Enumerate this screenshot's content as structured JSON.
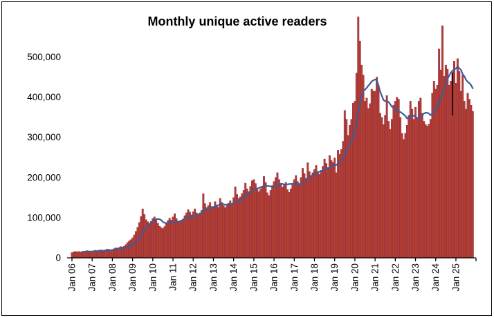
{
  "chart_data": {
    "type": "bar",
    "title": "Monthly unique active readers",
    "x_start_month": "2006-01",
    "x_end_month": "2025-11",
    "grid": false,
    "legend": "none",
    "ylim": [
      0,
      620000
    ],
    "y_tick_values": [
      0,
      100000,
      200000,
      300000,
      400000,
      500000
    ],
    "y_tick_labels": [
      "0",
      "100,000",
      "200,000",
      "300,000",
      "400,000",
      "500,000"
    ],
    "x_tick_labels": [
      "Jan 06",
      "Jan 07",
      "Jan 08",
      "Jan 09",
      "Jan 10",
      "Jan 11",
      "Jan 12",
      "Jan 13",
      "Jan 14",
      "Jan 15",
      "Jan 16",
      "Jan 17",
      "Jan 18",
      "Jan 19",
      "Jan 20",
      "Jan 21",
      "Jan 22",
      "Jan 23",
      "Jan 24",
      "Jan 25"
    ],
    "series": [
      {
        "name": "Monthly unique active readers",
        "type": "bar",
        "color": "#b5402e",
        "edge_color": "#8e2b50",
        "values": [
          13000,
          15000,
          16000,
          15000,
          16000,
          15000,
          14000,
          16000,
          17000,
          18000,
          17000,
          15000,
          16000,
          18000,
          19000,
          18000,
          19000,
          20000,
          19000,
          18000,
          20000,
          22000,
          21000,
          19000,
          21000,
          23000,
          25000,
          24000,
          26000,
          28000,
          27000,
          29000,
          33000,
          38000,
          42000,
          45000,
          50000,
          57000,
          66000,
          76000,
          88000,
          103000,
          122000,
          108000,
          95000,
          90000,
          86000,
          91000,
          98000,
          102000,
          94000,
          86000,
          79000,
          75000,
          73000,
          78000,
          86000,
          93000,
          99000,
          94000,
          102000,
          110000,
          98000,
          92000,
          90000,
          94000,
          97000,
          105000,
          112000,
          120000,
          114000,
          107000,
          115000,
          122000,
          112000,
          108000,
          112000,
          118000,
          160000,
          135000,
          125000,
          130000,
          138000,
          128000,
          128000,
          140000,
          132000,
          126000,
          148000,
          138000,
          130000,
          125000,
          130000,
          136000,
          142000,
          135000,
          150000,
          177000,
          158000,
          148000,
          152000,
          160000,
          168000,
          186000,
          172000,
          165000,
          178000,
          192000,
          195000,
          185000,
          170000,
          165000,
          172000,
          178000,
          203000,
          188000,
          162000,
          155000,
          168000,
          180000,
          190000,
          200000,
          212000,
          195000,
          182000,
          176000,
          180000,
          188000,
          170000,
          163000,
          172000,
          185000,
          195000,
          205000,
          190000,
          185000,
          200000,
          223000,
          210000,
          198000,
          237000,
          215000,
          205000,
          212000,
          220000,
          230000,
          215000,
          208000,
          218000,
          228000,
          246000,
          235000,
          225000,
          255000,
          243000,
          238000,
          249000,
          212000,
          268000,
          258000,
          270000,
          290000,
          367000,
          345000,
          305000,
          330000,
          345000,
          385000,
          390000,
          460000,
          600000,
          540000,
          480000,
          455000,
          390000,
          398000,
          372000,
          384000,
          420000,
          415000,
          415000,
          450000,
          430000,
          360000,
          350000,
          332000,
          355000,
          404000,
          340000,
          320000,
          345000,
          380000,
          390000,
          400000,
          395000,
          350000,
          310000,
          295000,
          310000,
          330000,
          355000,
          390000,
          370000,
          345000,
          375000,
          350000,
          390000,
          398000,
          360000,
          340000,
          332000,
          328000,
          333000,
          345000,
          410000,
          440000,
          420000,
          430000,
          520000,
          468000,
          578000,
          452000,
          480000,
          470000,
          430000,
          440000,
          462000,
          490000,
          435000,
          496000,
          464000,
          415000,
          455000,
          390000,
          370000,
          410000,
          395000,
          380000,
          365000
        ]
      },
      {
        "name": "12-month moving average",
        "type": "line",
        "color": "#3e5b96",
        "derived": "trailing-12-month-average-of-bar-series"
      }
    ],
    "annotation": {
      "type": "vertical-line",
      "month": "2024-11",
      "from": 355000,
      "to": 461000,
      "color": "#000000"
    }
  },
  "colors": {
    "background": "#ffffff",
    "border": "#000000",
    "axis": "#000000",
    "text": "#000000"
  }
}
